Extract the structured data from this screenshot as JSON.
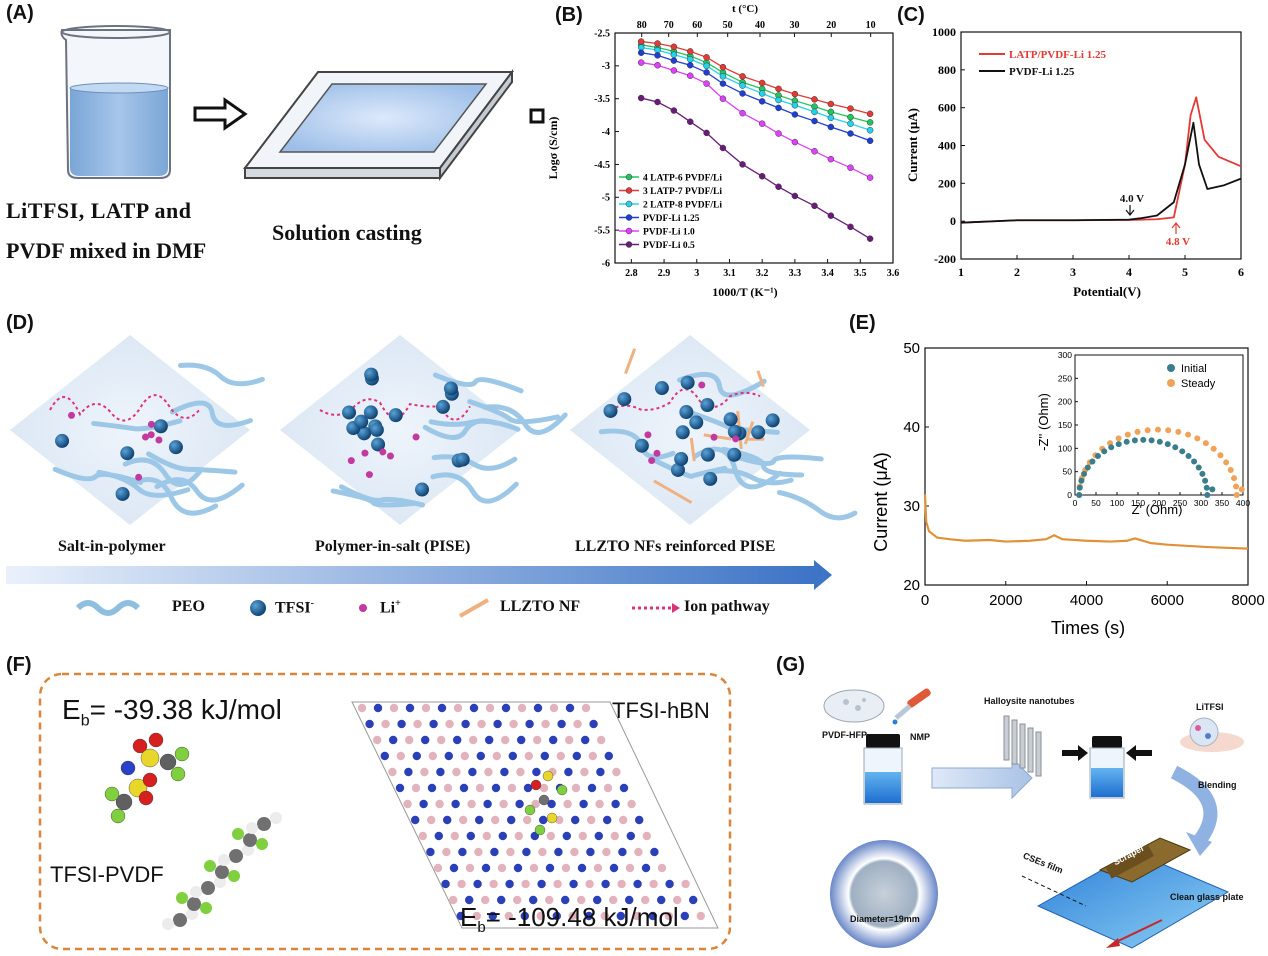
{
  "panels": {
    "A": {
      "label": "(A)",
      "caption_line1": "LiTFSI,  LATP  and",
      "caption_line2": "PVDF mixed in DMF",
      "step_caption": "Solution casting"
    },
    "B": {
      "label": "(B)",
      "top_axis_title": "t (°C)",
      "top_ticks": [
        "80",
        "70",
        "60",
        "50",
        "40",
        "30",
        "20",
        "10"
      ],
      "y_axis_title": "Logσ (S/cm)",
      "x_axis_title": "1000/T (K⁻¹)"
    },
    "C": {
      "label": "(C)",
      "y_axis_title": "Current (μA)",
      "x_axis_title": "Potential(V)",
      "annot_black": "4.0 V",
      "annot_red": "4.8 V"
    },
    "D": {
      "label": "(D)",
      "captions": [
        "Salt-in-polymer",
        "Polymer-in-salt (PISE)",
        "LLZTO NFs reinforced PISE"
      ],
      "legend": {
        "peo": "PEO",
        "tfsi": "TFSI",
        "tfsi_sup": "-",
        "li": "Li",
        "li_sup": "+",
        "llzto": "LLZTO NF",
        "path": "Ion pathway"
      }
    },
    "E": {
      "label": "(E)",
      "y_axis_title": "Current (μA)",
      "x_axis_title": "Times (s)",
      "inset_x_title": "Z' (Ohm)",
      "inset_y_title": "-Z'' (Ohm)"
    },
    "F": {
      "label": "(F)",
      "eb_left_prefix": "E",
      "eb_left_sub": "b",
      "eb_left_value": "= -39.38 kJ/mol",
      "eb_right_prefix": "E",
      "eb_right_sub": "b",
      "eb_right_value": "= -109.48 kJ/mol",
      "mol_left": "TFSI-PVDF",
      "mol_right": "TFSI-hBN"
    },
    "G": {
      "label": "(G)",
      "pvdf": "PVDF-HFP",
      "nmp": "NMP",
      "halloysite": "Halloysite nanotubes",
      "litfsi": "LiTFSI",
      "blending": "Blending",
      "scraper": "Scraper",
      "glass": "Clean glass plate",
      "film": "CSEs film",
      "diameter": "Diameter=19mm"
    }
  },
  "chart_data": [
    {
      "panel": "B",
      "type": "line",
      "x": [
        2.83,
        2.88,
        2.93,
        2.98,
        3.03,
        3.08,
        3.14,
        3.2,
        3.25,
        3.3,
        3.36,
        3.41,
        3.47,
        3.53
      ],
      "xlabel": "1000/T (K⁻¹)",
      "ylabel": "Logσ (S/cm)",
      "xlim": [
        2.75,
        3.6
      ],
      "ylim": [
        -6,
        -2.5
      ],
      "xticks": [
        2.8,
        2.9,
        3.0,
        3.1,
        3.2,
        3.3,
        3.4,
        3.5,
        3.6
      ],
      "yticks": [
        -2.5,
        -3,
        -3.5,
        -4,
        -4.5,
        -5,
        -5.5,
        -6
      ],
      "legend_position": "left",
      "series": [
        {
          "name": "4 LATP-6 PVDF/Li",
          "color": "#22c55e",
          "values": [
            -2.68,
            -2.72,
            -2.78,
            -2.85,
            -2.95,
            -3.1,
            -3.25,
            -3.35,
            -3.45,
            -3.53,
            -3.62,
            -3.7,
            -3.78,
            -3.86
          ]
        },
        {
          "name": "3 LATP-7 PVDF/Li",
          "color": "#e53935",
          "values": [
            -2.63,
            -2.66,
            -2.71,
            -2.78,
            -2.87,
            -3.02,
            -3.16,
            -3.26,
            -3.35,
            -3.43,
            -3.51,
            -3.58,
            -3.65,
            -3.73
          ]
        },
        {
          "name": "2 LATP-8 PVDF/Li",
          "color": "#22d3ee",
          "values": [
            -2.72,
            -2.76,
            -2.83,
            -2.9,
            -3.0,
            -3.16,
            -3.3,
            -3.42,
            -3.52,
            -3.6,
            -3.7,
            -3.79,
            -3.88,
            -3.98
          ]
        },
        {
          "name": "PVDF-Li 1.25",
          "color": "#1d3fd6",
          "values": [
            -2.8,
            -2.84,
            -2.92,
            -2.99,
            -3.1,
            -3.27,
            -3.42,
            -3.54,
            -3.64,
            -3.74,
            -3.84,
            -3.93,
            -4.03,
            -4.14
          ]
        },
        {
          "name": "PVDF-Li 1.0",
          "color": "#e040fb",
          "values": [
            -2.95,
            -2.99,
            -3.07,
            -3.15,
            -3.27,
            -3.5,
            -3.72,
            -3.88,
            -4.03,
            -4.16,
            -4.3,
            -4.42,
            -4.55,
            -4.7
          ]
        },
        {
          "name": "PVDF-Li 0.5",
          "color": "#6a1b7a",
          "values": [
            -3.49,
            -3.55,
            -3.68,
            -3.85,
            -4.02,
            -4.25,
            -4.5,
            -4.68,
            -4.84,
            -4.98,
            -5.13,
            -5.28,
            -5.45,
            -5.63
          ]
        }
      ]
    },
    {
      "panel": "C",
      "type": "line",
      "xlabel": "Potential(V)",
      "ylabel": "Current (μA)",
      "xlim": [
        1,
        6
      ],
      "ylim": [
        -200,
        1000
      ],
      "xticks": [
        1,
        2,
        3,
        4,
        5,
        6
      ],
      "yticks": [
        -200,
        0,
        200,
        400,
        600,
        800,
        1000
      ],
      "legend_position": "top-left",
      "series": [
        {
          "name": "LATP/PVDF-Li 1.25",
          "color": "#e53935",
          "x": [
            1,
            2,
            3,
            4,
            4.5,
            4.8,
            5.0,
            5.1,
            5.2,
            5.35,
            5.6,
            6.0
          ],
          "values": [
            -8,
            5,
            5,
            6,
            10,
            20,
            300,
            560,
            655,
            430,
            340,
            290
          ]
        },
        {
          "name": "PVDF-Li 1.25",
          "color": "#111111",
          "x": [
            1,
            2,
            3,
            4,
            4.2,
            4.5,
            4.8,
            5.0,
            5.15,
            5.25,
            5.4,
            5.7,
            6.0
          ],
          "values": [
            -8,
            5,
            5,
            8,
            15,
            30,
            100,
            300,
            520,
            300,
            170,
            190,
            225
          ]
        }
      ]
    },
    {
      "panel": "E",
      "type": "line",
      "xlabel": "Times (s)",
      "ylabel": "Current (μA)",
      "xlim": [
        0,
        8000
      ],
      "ylim": [
        20,
        50
      ],
      "xticks": [
        0,
        2000,
        4000,
        6000,
        8000
      ],
      "yticks": [
        20,
        30,
        40,
        50
      ],
      "series": [
        {
          "name": "",
          "color": "#e0913a",
          "x": [
            0,
            30,
            100,
            300,
            600,
            1000,
            1600,
            2000,
            2600,
            3000,
            3200,
            3400,
            4000,
            4600,
            5000,
            5200,
            5600,
            6000,
            7000,
            8000
          ],
          "values": [
            31.5,
            28,
            26.8,
            26,
            25.8,
            25.6,
            25.7,
            25.5,
            25.6,
            25.8,
            26.3,
            25.8,
            25.6,
            25.5,
            25.6,
            25.9,
            25.3,
            25.1,
            24.8,
            24.6
          ]
        }
      ]
    },
    {
      "panel": "E-inset",
      "type": "scatter",
      "xlabel": "Z' (Ohm)",
      "ylabel": "-Z'' (Ohm)",
      "xlim": [
        0,
        400
      ],
      "ylim": [
        0,
        300
      ],
      "xticks": [
        0,
        50,
        100,
        150,
        200,
        250,
        300,
        350,
        400
      ],
      "yticks": [
        0,
        50,
        100,
        150,
        200,
        250,
        300
      ],
      "legend_position": "top-right",
      "series": [
        {
          "name": "Initial",
          "color": "#3a7d8c",
          "r0": 10,
          "r1": 315,
          "peak": 118
        },
        {
          "name": "Steady",
          "color": "#f0a258",
          "r0": 10,
          "r1": 385,
          "peak": 140
        }
      ]
    }
  ]
}
